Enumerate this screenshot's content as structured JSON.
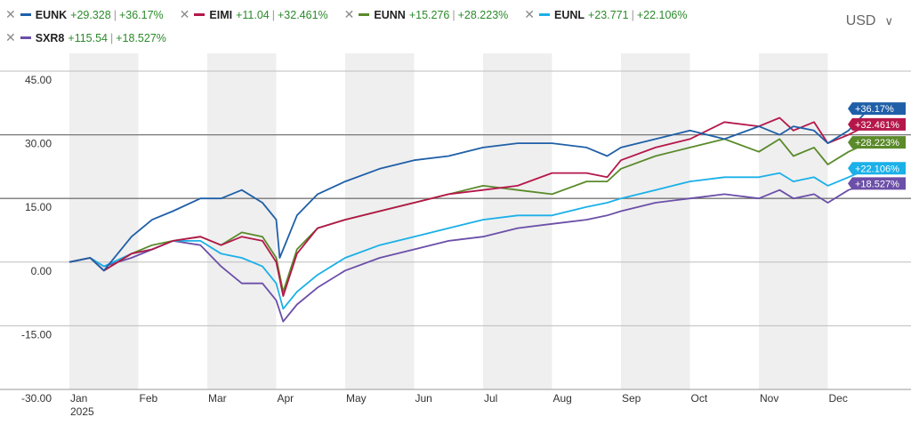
{
  "legend": [
    {
      "ticker": "EUNK",
      "value": "+29.328",
      "pct": "+36.17%",
      "color": "#1f5fa8"
    },
    {
      "ticker": "EIMI",
      "value": "+11.04",
      "pct": "+32.461%",
      "color": "#b5174a"
    },
    {
      "ticker": "EUNN",
      "value": "+15.276",
      "pct": "+28.223%",
      "color": "#5a8a2a"
    },
    {
      "ticker": "EUNL",
      "value": "+23.771",
      "pct": "+22.106%",
      "color": "#1ab0e8"
    },
    {
      "ticker": "SXR8",
      "value": "+115.54",
      "pct": "+18.527%",
      "color": "#6b4fa8"
    }
  ],
  "currency": {
    "label": "USD",
    "chevron": "∨"
  },
  "chart_data": {
    "type": "line",
    "ylim": [
      -30,
      45
    ],
    "yticks": [
      "45.00",
      "30.00",
      "15.00",
      "0.00",
      "-15.00",
      "-30.00"
    ],
    "month_labels": [
      "Jan",
      "Feb",
      "Mar",
      "Apr",
      "May",
      "Jun",
      "Jul",
      "Aug",
      "Sep",
      "Oct",
      "Nov",
      "Dec"
    ],
    "year_label": "2025",
    "grid": true,
    "series": [
      {
        "name": "EUNK",
        "color": "#1f5fa8",
        "end_label": "+36.17%",
        "x": [
          0,
          0.3,
          0.5,
          0.9,
          1.2,
          1.5,
          1.9,
          2.2,
          2.5,
          2.8,
          3.0,
          3.05,
          3.1,
          3.3,
          3.6,
          4.0,
          4.5,
          5.0,
          5.5,
          6.0,
          6.5,
          7.0,
          7.5,
          7.8,
          8.0,
          8.5,
          9.0,
          9.5,
          10.0,
          10.3,
          10.5,
          10.8,
          11.0,
          11.3,
          11.6
        ],
        "y": [
          0,
          1,
          -2,
          6,
          10,
          12,
          15,
          15,
          17,
          14,
          10,
          1,
          3,
          11,
          16,
          19,
          22,
          24,
          25,
          27,
          28,
          28,
          27,
          25,
          27,
          29,
          31,
          29,
          32,
          30,
          32,
          31,
          28,
          31,
          36.17
        ]
      },
      {
        "name": "EIMI",
        "color": "#b5174a",
        "end_label": "+32.461%",
        "x": [
          0,
          0.3,
          0.5,
          0.9,
          1.2,
          1.5,
          1.9,
          2.2,
          2.5,
          2.8,
          3.0,
          3.1,
          3.3,
          3.6,
          4.0,
          4.5,
          5.0,
          5.5,
          6.0,
          6.5,
          7.0,
          7.5,
          7.8,
          8.0,
          8.5,
          9.0,
          9.5,
          10.0,
          10.3,
          10.5,
          10.8,
          11.0,
          11.3,
          11.6
        ],
        "y": [
          0,
          1,
          -2,
          2,
          3,
          5,
          6,
          4,
          6,
          5,
          0,
          -8,
          2,
          8,
          10,
          12,
          14,
          16,
          17,
          18,
          21,
          21,
          20,
          24,
          27,
          29,
          33,
          32,
          34,
          31,
          33,
          28,
          30,
          32.461
        ]
      },
      {
        "name": "EUNN",
        "color": "#5a8a2a",
        "end_label": "+28.223%",
        "x": [
          0,
          0.3,
          0.5,
          0.9,
          1.2,
          1.5,
          1.9,
          2.2,
          2.5,
          2.8,
          3.0,
          3.1,
          3.3,
          3.6,
          4.0,
          4.5,
          5.0,
          5.5,
          6.0,
          6.5,
          7.0,
          7.5,
          7.8,
          8.0,
          8.5,
          9.0,
          9.5,
          10.0,
          10.3,
          10.5,
          10.8,
          11.0,
          11.3,
          11.6
        ],
        "y": [
          0,
          1,
          -2,
          2,
          4,
          5,
          6,
          4,
          7,
          6,
          1,
          -7,
          3,
          8,
          10,
          12,
          14,
          16,
          18,
          17,
          16,
          19,
          19,
          22,
          25,
          27,
          29,
          26,
          29,
          25,
          27,
          23,
          26,
          28.223
        ]
      },
      {
        "name": "EUNL",
        "color": "#1ab0e8",
        "end_label": "+22.106%",
        "x": [
          0,
          0.3,
          0.5,
          0.9,
          1.2,
          1.5,
          1.9,
          2.2,
          2.5,
          2.8,
          3.0,
          3.1,
          3.3,
          3.6,
          4.0,
          4.5,
          5.0,
          5.5,
          6.0,
          6.5,
          7.0,
          7.5,
          7.8,
          8.0,
          8.5,
          9.0,
          9.5,
          10.0,
          10.3,
          10.5,
          10.8,
          11.0,
          11.3,
          11.6
        ],
        "y": [
          0,
          1,
          -1,
          2,
          3,
          5,
          5,
          2,
          1,
          -1,
          -5,
          -11,
          -7,
          -3,
          1,
          4,
          6,
          8,
          10,
          11,
          11,
          13,
          14,
          15,
          17,
          19,
          20,
          20,
          21,
          19,
          20,
          18,
          20,
          22.106
        ]
      },
      {
        "name": "SXR8",
        "color": "#6b4fa8",
        "end_label": "+18.527%",
        "x": [
          0,
          0.3,
          0.5,
          0.9,
          1.2,
          1.5,
          1.9,
          2.2,
          2.5,
          2.8,
          3.0,
          3.1,
          3.3,
          3.6,
          4.0,
          4.5,
          5.0,
          5.5,
          6.0,
          6.5,
          7.0,
          7.5,
          7.8,
          8.0,
          8.5,
          9.0,
          9.5,
          10.0,
          10.3,
          10.5,
          10.8,
          11.0,
          11.3,
          11.6
        ],
        "y": [
          0,
          1,
          -1,
          1,
          3,
          5,
          4,
          -1,
          -5,
          -5,
          -9,
          -14,
          -10,
          -6,
          -2,
          1,
          3,
          5,
          6,
          8,
          9,
          10,
          11,
          12,
          14,
          15,
          16,
          15,
          17,
          15,
          16,
          14,
          17,
          18.527
        ]
      }
    ]
  }
}
